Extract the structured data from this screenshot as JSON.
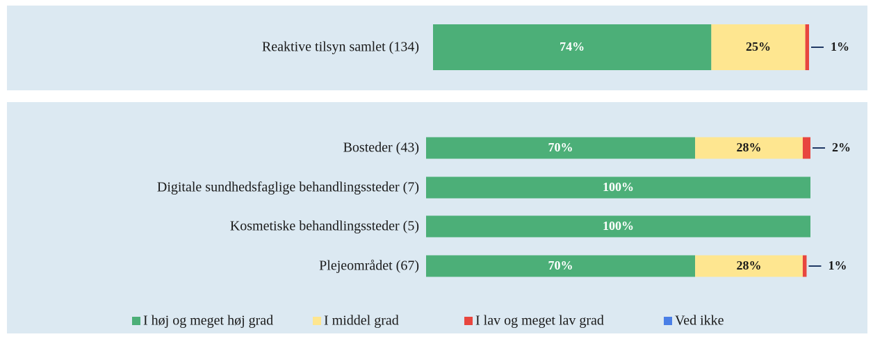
{
  "chart_data": [
    {
      "type": "bar",
      "orientation": "horizontal",
      "stacked": true,
      "categories": [
        "Reaktive tilsyn samlet (134)"
      ],
      "xlim": [
        0,
        100
      ],
      "series": [
        {
          "color": "#4caf78",
          "values": [
            74
          ],
          "value_labels": [
            "74%"
          ]
        },
        {
          "color": "#fee690",
          "values": [
            25
          ],
          "value_labels": [
            "25%"
          ]
        },
        {
          "color": "#e8463f",
          "values": [
            1
          ],
          "value_labels": [
            "1%"
          ]
        },
        {
          "color": "#4a7fe6",
          "values": [
            0
          ],
          "value_labels": [
            null
          ]
        }
      ]
    },
    {
      "type": "bar",
      "orientation": "horizontal",
      "stacked": true,
      "categories": [
        "Bosteder (43)",
        "Digitale sundhedsfaglige behandlingssteder (7)",
        "Kosmetiske behandlingssteder (5)",
        "Plejeområdet (67)"
      ],
      "xlim": [
        0,
        100
      ],
      "legend": "bottom",
      "series": [
        {
          "name": "I høj og meget høj grad",
          "color": "#4caf78",
          "values": [
            70,
            100,
            100,
            70
          ],
          "value_labels": [
            "70%",
            "100%",
            "100%",
            "70%"
          ]
        },
        {
          "name": "I middel grad",
          "color": "#fee690",
          "values": [
            28,
            0,
            0,
            28
          ],
          "value_labels": [
            "28%",
            null,
            null,
            "28%"
          ]
        },
        {
          "name": "I lav og meget lav grad",
          "color": "#e8463f",
          "values": [
            2,
            0,
            0,
            1
          ],
          "value_labels": [
            "2%",
            null,
            null,
            "1%"
          ]
        },
        {
          "name": "Ved ikke",
          "color": "#4a7fe6",
          "values": [
            0,
            0,
            0,
            0
          ],
          "value_labels": [
            null,
            null,
            null,
            null
          ]
        }
      ]
    }
  ]
}
